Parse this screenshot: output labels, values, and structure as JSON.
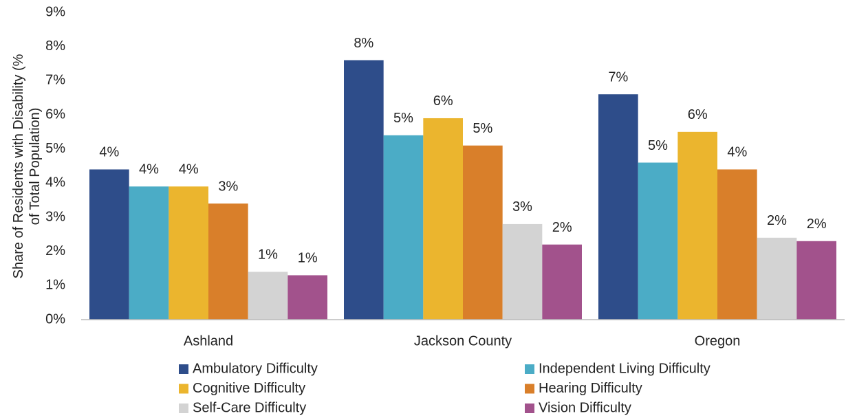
{
  "chart_data": {
    "type": "bar",
    "ylabel": "Share of Residents with Disability (% of Total Population)",
    "categories": [
      "Ashland",
      "Jackson County",
      "Oregon"
    ],
    "series": [
      {
        "name": "Ambulatory Difficulty",
        "color": "#2e4d8a",
        "values": [
          4.4,
          7.6,
          6.6
        ],
        "value_labels": [
          "4%",
          "8%",
          "7%"
        ]
      },
      {
        "name": "Independent Living Difficulty",
        "color": "#4bacc6",
        "values": [
          3.9,
          5.4,
          4.6
        ],
        "value_labels": [
          "4%",
          "5%",
          "5%"
        ]
      },
      {
        "name": "Cognitive Difficulty",
        "color": "#ebb52e",
        "values": [
          3.9,
          5.9,
          5.5
        ],
        "value_labels": [
          "4%",
          "6%",
          "6%"
        ]
      },
      {
        "name": "Hearing Difficulty",
        "color": "#d97f2a",
        "values": [
          3.4,
          5.1,
          4.4
        ],
        "value_labels": [
          "3%",
          "5%",
          "4%"
        ]
      },
      {
        "name": "Self-Care Difficulty",
        "color": "#d3d3d3",
        "values": [
          1.4,
          2.8,
          2.4
        ],
        "value_labels": [
          "1%",
          "3%",
          "2%"
        ]
      },
      {
        "name": "Vision Difficulty",
        "color": "#a2528c",
        "values": [
          1.3,
          2.2,
          2.3
        ],
        "value_labels": [
          "1%",
          "2%",
          "2%"
        ]
      }
    ],
    "ylim": [
      0,
      9
    ],
    "yticks": [
      {
        "value": 0,
        "label": "0%"
      },
      {
        "value": 1,
        "label": "1%"
      },
      {
        "value": 2,
        "label": "2%"
      },
      {
        "value": 3,
        "label": "3%"
      },
      {
        "value": 4,
        "label": "4%"
      },
      {
        "value": 5,
        "label": "5%"
      },
      {
        "value": 6,
        "label": "6%"
      },
      {
        "value": 7,
        "label": "7%"
      },
      {
        "value": 8,
        "label": "8%"
      },
      {
        "value": 9,
        "label": "9%"
      }
    ],
    "grid": false
  }
}
